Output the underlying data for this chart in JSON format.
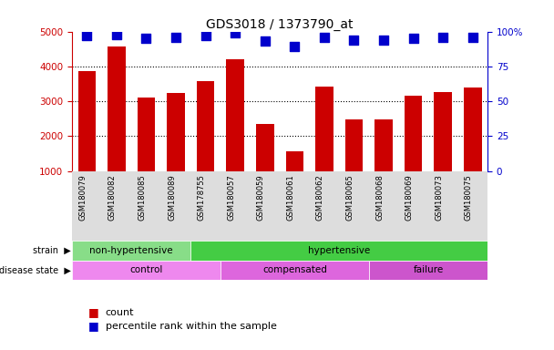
{
  "title": "GDS3018 / 1373790_at",
  "samples": [
    "GSM180079",
    "GSM180082",
    "GSM180085",
    "GSM180089",
    "GSM178755",
    "GSM180057",
    "GSM180059",
    "GSM180061",
    "GSM180062",
    "GSM180065",
    "GSM180068",
    "GSM180069",
    "GSM180073",
    "GSM180075"
  ],
  "counts": [
    3870,
    4560,
    3100,
    3240,
    3580,
    4200,
    2340,
    1570,
    3420,
    2480,
    2490,
    3150,
    3270,
    3390
  ],
  "percentile": [
    97,
    98,
    95,
    96,
    97,
    99,
    93,
    89,
    96,
    94,
    94,
    95,
    96,
    96
  ],
  "ylim_left": [
    1000,
    5000
  ],
  "ylim_right": [
    0,
    100
  ],
  "yticks_left": [
    1000,
    2000,
    3000,
    4000,
    5000
  ],
  "yticks_right": [
    0,
    25,
    50,
    75,
    100
  ],
  "bar_color": "#cc0000",
  "dot_color": "#0000cc",
  "strain_groups": [
    {
      "label": "non-hypertensive",
      "start": 0,
      "end": 4,
      "color": "#88dd88"
    },
    {
      "label": "hypertensive",
      "start": 4,
      "end": 14,
      "color": "#44cc44"
    }
  ],
  "disease_groups": [
    {
      "label": "control",
      "start": 0,
      "end": 5,
      "color": "#ee88ee"
    },
    {
      "label": "compensated",
      "start": 5,
      "end": 10,
      "color": "#dd66dd"
    },
    {
      "label": "failure",
      "start": 10,
      "end": 14,
      "color": "#cc55cc"
    }
  ],
  "legend_count_color": "#cc0000",
  "legend_dot_color": "#0000cc",
  "bg_color": "#ffffff",
  "tick_color_left": "#cc0000",
  "tick_color_right": "#0000cc",
  "dotted_line_color": "#555555",
  "bar_width": 0.6,
  "dot_size": 60,
  "dot_marker": "s"
}
